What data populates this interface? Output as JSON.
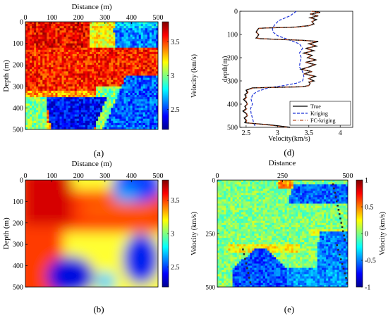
{
  "colors": {
    "jet": [
      "#00008f",
      "#0000ff",
      "#00ffff",
      "#ffff00",
      "#ff0000",
      "#800000"
    ],
    "true_line": "#000000",
    "kriging_line": "#1f35d8",
    "fckriging_line": "#b9502a",
    "fault_dots": "#2a2a2a"
  },
  "chart_data": [
    {
      "id": "a",
      "type": "heatmap",
      "caption": "(a)",
      "xlabel": "Distance (m)",
      "ylabel": "Depth (m)",
      "xlim": [
        0,
        500
      ],
      "ylim": [
        500,
        0
      ],
      "xticks": [
        "0",
        "100",
        "200",
        "300",
        "400",
        "500"
      ],
      "yticks": [
        "0",
        "100",
        "200",
        "300",
        "400",
        "500"
      ],
      "colorbar": {
        "label": "Velocity (km/s)",
        "range": [
          2.2,
          3.8
        ],
        "ticks": [
          "3.5",
          "3",
          "2.5"
        ],
        "tick_values": [
          3.5,
          3.0,
          2.5
        ]
      },
      "description_of_field": "true velocity model with blocks and faults",
      "grid": false
    },
    {
      "id": "b",
      "type": "heatmap",
      "caption": "(b)",
      "xlabel": "Distance (m)",
      "ylabel": "Depth (m)",
      "xlim": [
        0,
        500
      ],
      "ylim": [
        500,
        0
      ],
      "xticks": [
        "0",
        "100",
        "200",
        "300",
        "400",
        "500"
      ],
      "yticks": [
        "0",
        "100",
        "200",
        "300",
        "400",
        "500"
      ],
      "colorbar": {
        "label": "Velocity (km/s)",
        "range": [
          2.2,
          3.8
        ],
        "ticks": [
          "3.5",
          "3",
          "2.5"
        ],
        "tick_values": [
          3.5,
          3.0,
          2.5
        ]
      },
      "grid": false
    },
    {
      "id": "d",
      "type": "line",
      "caption": "(d)",
      "xlabel": "Velocity(km/s)",
      "ylabel": "depth(m)",
      "xlim": [
        2.4,
        4.2
      ],
      "ylim": [
        500,
        0
      ],
      "xticks": [
        "2.5",
        "3",
        "3.5",
        "4"
      ],
      "xtick_values": [
        2.5,
        3.0,
        3.5,
        4.0
      ],
      "yticks": [
        "0",
        "100",
        "200",
        "300",
        "400",
        "500"
      ],
      "legend": {
        "position": "bottom-right",
        "entries": [
          "True",
          "Kriging",
          "FC-kriging"
        ]
      },
      "series": [
        {
          "name": "True",
          "style": "solid",
          "depth": [
            0,
            5,
            12,
            20,
            28,
            36,
            45,
            55,
            62,
            68,
            72,
            74,
            80,
            90,
            100,
            110,
            115,
            118,
            125,
            130,
            140,
            150,
            160,
            170,
            180,
            190,
            200,
            210,
            220,
            230,
            240,
            250,
            260,
            270,
            280,
            290,
            300,
            305,
            310,
            320,
            325,
            330,
            340,
            350,
            360,
            370,
            380,
            390,
            400,
            410,
            420,
            430,
            440,
            450,
            460,
            470,
            480,
            490,
            500
          ],
          "velocity": [
            3.55,
            3.68,
            3.52,
            3.65,
            3.52,
            3.62,
            3.55,
            3.58,
            3.5,
            3.3,
            2.8,
            2.7,
            2.68,
            2.66,
            2.7,
            2.68,
            2.66,
            2.72,
            3.4,
            3.65,
            3.5,
            3.62,
            3.45,
            3.58,
            3.42,
            3.55,
            3.48,
            3.62,
            3.45,
            3.6,
            3.5,
            3.38,
            3.55,
            3.42,
            3.6,
            3.5,
            3.58,
            3.5,
            3.52,
            3.5,
            3.4,
            2.6,
            2.5,
            2.52,
            2.48,
            2.5,
            2.46,
            2.5,
            2.52,
            2.48,
            2.5,
            2.45,
            2.5,
            2.52,
            2.47,
            2.5,
            2.48,
            2.9,
            3.2
          ]
        },
        {
          "name": "Kriging",
          "style": "dashed",
          "depth": [
            0,
            20,
            40,
            60,
            75,
            90,
            105,
            120,
            140,
            160,
            180,
            200,
            220,
            240,
            260,
            280,
            300,
            310,
            320,
            330,
            345,
            360,
            380,
            400,
            420,
            440,
            460,
            480,
            500
          ],
          "velocity": [
            3.3,
            3.2,
            3.02,
            2.95,
            2.92,
            2.93,
            3.0,
            3.15,
            3.35,
            3.4,
            3.35,
            3.38,
            3.36,
            3.35,
            3.4,
            3.42,
            3.4,
            3.3,
            3.1,
            2.85,
            2.68,
            2.6,
            2.58,
            2.6,
            2.57,
            2.58,
            2.6,
            2.62,
            2.65
          ]
        },
        {
          "name": "FC-kriging",
          "style": "dashdot",
          "depth": [
            0,
            5,
            12,
            20,
            28,
            36,
            45,
            55,
            62,
            68,
            72,
            74,
            80,
            90,
            100,
            110,
            115,
            118,
            125,
            130,
            140,
            150,
            160,
            170,
            180,
            190,
            200,
            210,
            220,
            230,
            240,
            250,
            260,
            270,
            280,
            290,
            300,
            305,
            310,
            320,
            325,
            330,
            340,
            350,
            360,
            370,
            380,
            390,
            400,
            410,
            420,
            430,
            440,
            450,
            460,
            470,
            480,
            490,
            500
          ],
          "velocity": [
            3.54,
            3.66,
            3.53,
            3.63,
            3.53,
            3.6,
            3.55,
            3.57,
            3.5,
            3.32,
            2.82,
            2.71,
            2.68,
            2.67,
            2.69,
            2.68,
            2.67,
            2.73,
            3.38,
            3.62,
            3.5,
            3.6,
            3.46,
            3.56,
            3.43,
            3.54,
            3.48,
            3.6,
            3.46,
            3.58,
            3.5,
            3.4,
            3.54,
            3.43,
            3.58,
            3.5,
            3.56,
            3.5,
            3.52,
            3.5,
            3.42,
            2.62,
            2.52,
            2.53,
            2.5,
            2.51,
            2.48,
            2.51,
            2.52,
            2.49,
            2.51,
            2.47,
            2.51,
            2.52,
            2.48,
            2.51,
            2.5,
            2.85,
            3.15
          ]
        }
      ],
      "grid": false
    },
    {
      "id": "e",
      "type": "heatmap",
      "caption": "(e)",
      "xlabel": "Distance",
      "ylabel": "",
      "xlim": [
        0,
        500
      ],
      "ylim": [
        500,
        0
      ],
      "xticks": [
        "0",
        "250",
        "500"
      ],
      "xtick_values": [
        0,
        250,
        500
      ],
      "yticks": [
        "0",
        "250",
        "500"
      ],
      "ytick_values": [
        0,
        250,
        500
      ],
      "colorbar": {
        "label": "Velocity (km/s)",
        "range": [
          -1,
          1
        ],
        "ticks": [
          "1",
          "0.5",
          "0",
          "-0.5",
          "-1"
        ],
        "tick_values": [
          1,
          0.5,
          0,
          -0.5,
          -1
        ]
      },
      "grid": false
    }
  ]
}
